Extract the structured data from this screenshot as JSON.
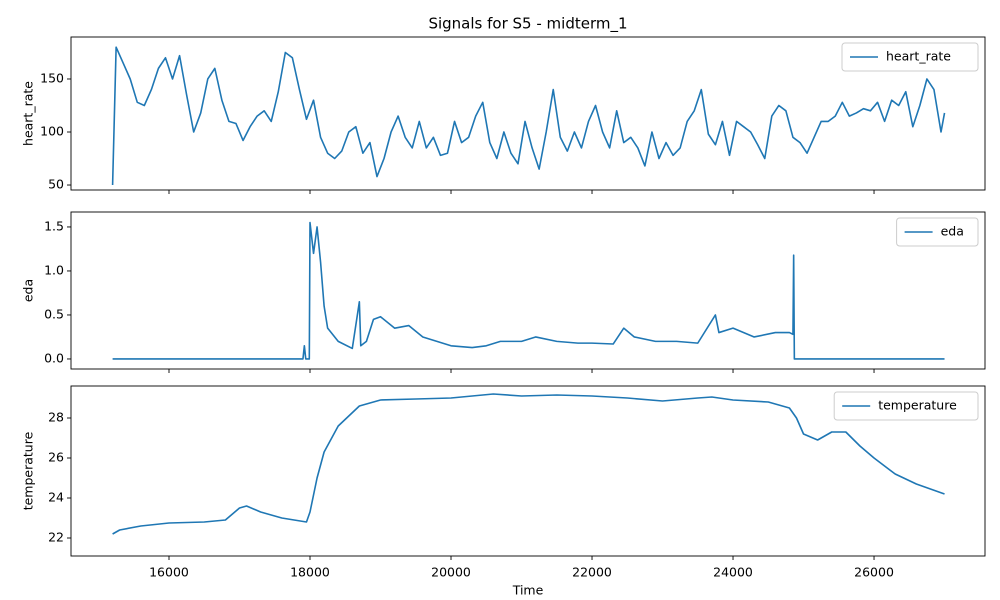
{
  "chart_data": [
    {
      "type": "line",
      "title": "Signals for S5 - midterm_1",
      "ylabel": "heart_rate",
      "legend": "upper right",
      "xlim": [
        14610,
        27574
      ],
      "ylim": [
        45.3,
        189.6
      ],
      "yticks": [
        50,
        100,
        150
      ],
      "x": [
        15200,
        15250,
        15350,
        15450,
        15550,
        15650,
        15750,
        15850,
        15950,
        16050,
        16150,
        16250,
        16350,
        16450,
        16550,
        16650,
        16750,
        16850,
        16950,
        17050,
        17150,
        17250,
        17350,
        17450,
        17550,
        17650,
        17750,
        17850,
        17950,
        18050,
        18150,
        18250,
        18350,
        18450,
        18550,
        18650,
        18750,
        18850,
        18950,
        19050,
        19150,
        19250,
        19350,
        19450,
        19550,
        19650,
        19750,
        19850,
        19950,
        20050,
        20150,
        20250,
        20350,
        20450,
        20550,
        20650,
        20750,
        20850,
        20950,
        21050,
        21150,
        21250,
        21350,
        21450,
        21550,
        21650,
        21750,
        21850,
        21950,
        22050,
        22150,
        22250,
        22350,
        22450,
        22550,
        22650,
        22750,
        22850,
        22950,
        23050,
        23150,
        23250,
        23350,
        23450,
        23550,
        23650,
        23750,
        23850,
        23950,
        24050,
        24150,
        24250,
        24350,
        24450,
        24550,
        24650,
        24750,
        24850,
        24950,
        25050,
        25150,
        25250,
        25350,
        25450,
        25550,
        25650,
        25750,
        25850,
        25950,
        26050,
        26150,
        26250,
        26350,
        26450,
        26550,
        26650,
        26750,
        26850,
        26950,
        27000
      ],
      "series": [
        {
          "name": "heart_rate",
          "color": "#1f77b4",
          "values": [
            50,
            180,
            165,
            150,
            128,
            125,
            140,
            160,
            170,
            150,
            172,
            135,
            100,
            118,
            150,
            160,
            130,
            110,
            108,
            92,
            105,
            115,
            120,
            110,
            138,
            175,
            170,
            140,
            112,
            130,
            95,
            80,
            75,
            82,
            100,
            105,
            80,
            90,
            58,
            75,
            100,
            115,
            95,
            85,
            110,
            85,
            95,
            78,
            80,
            110,
            90,
            95,
            115,
            128,
            90,
            75,
            100,
            80,
            70,
            110,
            85,
            65,
            100,
            140,
            95,
            82,
            100,
            85,
            110,
            125,
            100,
            85,
            120,
            90,
            95,
            85,
            68,
            100,
            75,
            90,
            78,
            85,
            110,
            120,
            140,
            98,
            88,
            110,
            78,
            110,
            105,
            100,
            88,
            75,
            115,
            125,
            120,
            95,
            90,
            80,
            95,
            110,
            110,
            115,
            128,
            115,
            118,
            122,
            120,
            128,
            110,
            130,
            125,
            138,
            105,
            125,
            150,
            140,
            100,
            118
          ]
        }
      ]
    },
    {
      "type": "line",
      "ylabel": "eda",
      "legend": "upper right",
      "xlim": [
        14610,
        27574
      ],
      "ylim": [
        -0.114,
        1.67
      ],
      "yticks": [
        {
          "value": 0,
          "label": "0.0"
        },
        {
          "value": 0.5,
          "label": "0.5"
        },
        {
          "value": 1,
          "label": "1.0"
        },
        {
          "value": 1.5,
          "label": "1.5"
        }
      ],
      "x": [
        15200,
        17900,
        17920,
        17940,
        17990,
        18000,
        18050,
        18100,
        18150,
        18200,
        18250,
        18400,
        18600,
        18700,
        18720,
        18800,
        18900,
        19000,
        19200,
        19400,
        19600,
        19800,
        20000,
        20300,
        20500,
        20700,
        21000,
        21200,
        21500,
        21800,
        22000,
        22300,
        22450,
        22600,
        22900,
        23200,
        23500,
        23750,
        23800,
        24000,
        24300,
        24600,
        24800,
        24850,
        24860,
        24870,
        27000
      ],
      "series": [
        {
          "name": "eda",
          "color": "#1f77b4",
          "values": [
            0,
            0,
            0.15,
            0,
            0,
            1.55,
            1.2,
            1.5,
            1.1,
            0.6,
            0.35,
            0.2,
            0.12,
            0.65,
            0.15,
            0.2,
            0.45,
            0.48,
            0.35,
            0.38,
            0.25,
            0.2,
            0.15,
            0.13,
            0.15,
            0.2,
            0.2,
            0.25,
            0.2,
            0.18,
            0.18,
            0.17,
            0.35,
            0.25,
            0.2,
            0.2,
            0.18,
            0.5,
            0.3,
            0.35,
            0.25,
            0.3,
            0.3,
            0.28,
            1.18,
            0,
            0
          ]
        }
      ]
    },
    {
      "type": "line",
      "ylabel": "temperature",
      "xlabel": "Time",
      "legend": "upper right",
      "xlim": [
        14610,
        27574
      ],
      "ylim": [
        21.1,
        29.6
      ],
      "yticks": [
        22,
        24,
        26,
        28
      ],
      "xticks": [
        16000,
        18000,
        20000,
        22000,
        24000,
        26000
      ],
      "x": [
        15200,
        15300,
        15600,
        16000,
        16500,
        16800,
        17000,
        17100,
        17300,
        17600,
        17950,
        18000,
        18100,
        18200,
        18400,
        18700,
        19000,
        19500,
        20000,
        20600,
        21000,
        21500,
        22000,
        22500,
        23000,
        23500,
        23700,
        24000,
        24500,
        24800,
        24900,
        25000,
        25200,
        25400,
        25600,
        25800,
        26000,
        26300,
        26600,
        27000
      ],
      "series": [
        {
          "name": "temperature",
          "color": "#1f77b4",
          "values": [
            22.2,
            22.4,
            22.6,
            22.75,
            22.8,
            22.9,
            23.5,
            23.6,
            23.3,
            23.0,
            22.8,
            23.3,
            25.0,
            26.3,
            27.6,
            28.6,
            28.9,
            28.95,
            29.0,
            29.2,
            29.1,
            29.15,
            29.1,
            29.0,
            28.85,
            29.0,
            29.05,
            28.9,
            28.8,
            28.5,
            28.0,
            27.2,
            26.9,
            27.3,
            27.3,
            26.6,
            26.0,
            25.2,
            24.7,
            24.2
          ]
        }
      ]
    }
  ]
}
